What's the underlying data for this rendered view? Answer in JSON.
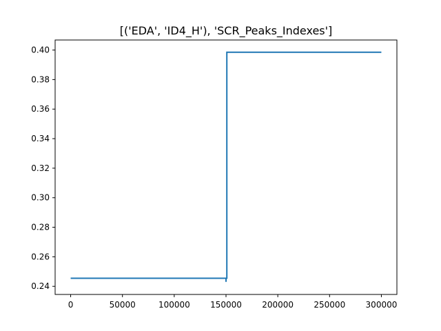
{
  "chart_data": {
    "type": "line",
    "title": "[('EDA', 'ID4_H'), 'SCR_Peaks_Indexes']",
    "xlabel": "",
    "ylabel": "",
    "xlim": [
      -15000,
      315000
    ],
    "ylim": [
      0.2345,
      0.4068
    ],
    "grid": false,
    "xticks": [
      0,
      50000,
      100000,
      150000,
      200000,
      250000,
      300000
    ],
    "xtick_labels": [
      "0",
      "50000",
      "100000",
      "150000",
      "200000",
      "250000",
      "300000"
    ],
    "yticks": [
      0.24,
      0.26,
      0.28,
      0.3,
      0.32,
      0.34,
      0.36,
      0.38,
      0.4
    ],
    "ytick_labels": [
      "0.24",
      "0.26",
      "0.28",
      "0.30",
      "0.32",
      "0.34",
      "0.36",
      "0.38",
      "0.40"
    ],
    "series": [
      {
        "color": "#1f77b4",
        "x": [
          0,
          150000,
          150000,
          150000,
          150000,
          150000,
          150800,
          150800,
          300000
        ],
        "y": [
          0.2455,
          0.2455,
          0.243,
          0.2455,
          0.243,
          0.2455,
          0.2455,
          0.3985,
          0.3985
        ]
      }
    ]
  }
}
